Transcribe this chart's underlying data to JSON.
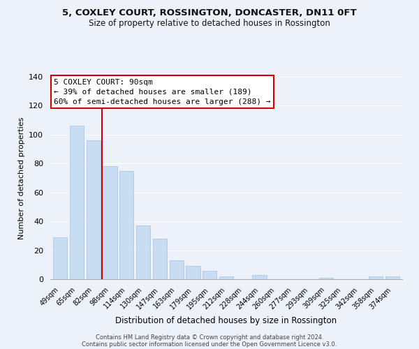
{
  "title": "5, COXLEY COURT, ROSSINGTON, DONCASTER, DN11 0FT",
  "subtitle": "Size of property relative to detached houses in Rossington",
  "xlabel": "Distribution of detached houses by size in Rossington",
  "ylabel": "Number of detached properties",
  "footer_line1": "Contains HM Land Registry data © Crown copyright and database right 2024.",
  "footer_line2": "Contains public sector information licensed under the Open Government Licence v3.0.",
  "bar_labels": [
    "49sqm",
    "65sqm",
    "82sqm",
    "98sqm",
    "114sqm",
    "130sqm",
    "147sqm",
    "163sqm",
    "179sqm",
    "195sqm",
    "212sqm",
    "228sqm",
    "244sqm",
    "260sqm",
    "277sqm",
    "293sqm",
    "309sqm",
    "325sqm",
    "342sqm",
    "358sqm",
    "374sqm"
  ],
  "bar_values": [
    29,
    106,
    96,
    78,
    75,
    37,
    28,
    13,
    9,
    6,
    2,
    0,
    3,
    0,
    0,
    0,
    1,
    0,
    0,
    2,
    2
  ],
  "bar_color": "#c9ddf2",
  "bar_edge_color": "#aac8e8",
  "ylim": [
    0,
    140
  ],
  "yticks": [
    0,
    20,
    40,
    60,
    80,
    100,
    120,
    140
  ],
  "reference_line_color": "#cc0000",
  "annotation_title": "5 COXLEY COURT: 90sqm",
  "annotation_line1": "← 39% of detached houses are smaller (189)",
  "annotation_line2": "60% of semi-detached houses are larger (288) →",
  "annotation_box_color": "#ffffff",
  "annotation_box_edge_color": "#cc0000",
  "background_color": "#edf2fa",
  "grid_color": "#ffffff",
  "title_fontsize": 9.5,
  "subtitle_fontsize": 8.5
}
